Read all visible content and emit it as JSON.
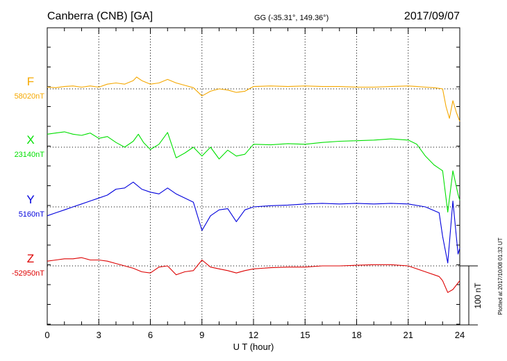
{
  "header": {
    "station": "Canberra (CNB)  [GA]",
    "coords": "GG (-35.31°, 149.36°)",
    "date": "2017/09/07"
  },
  "footer_note": "Plotted at 2017/10/08 01:32 UT",
  "chart_data": {
    "type": "line",
    "xlabel": "U T (hour)",
    "xlim": [
      0,
      24
    ],
    "x_ticks": [
      0,
      3,
      6,
      9,
      12,
      15,
      18,
      21,
      24
    ],
    "x_minor_step": 1,
    "grid": "dotted",
    "scale_bar": {
      "label": "100 nT",
      "value": 100
    },
    "series": [
      {
        "name": "F",
        "baseline": "58020nT",
        "color": "#f5a800",
        "points": [
          [
            0,
            3
          ],
          [
            0.5,
            2
          ],
          [
            1,
            4
          ],
          [
            1.5,
            5
          ],
          [
            2,
            3
          ],
          [
            2.5,
            5
          ],
          [
            3,
            3
          ],
          [
            3.5,
            8
          ],
          [
            4,
            10
          ],
          [
            4.5,
            8
          ],
          [
            5,
            14
          ],
          [
            5.2,
            20
          ],
          [
            5.5,
            14
          ],
          [
            6,
            8
          ],
          [
            6.5,
            10
          ],
          [
            7,
            16
          ],
          [
            7.5,
            10
          ],
          [
            8,
            6
          ],
          [
            8.5,
            2
          ],
          [
            9,
            -12
          ],
          [
            9.5,
            -4
          ],
          [
            10,
            0
          ],
          [
            10.5,
            -2
          ],
          [
            11,
            -6
          ],
          [
            11.5,
            -4
          ],
          [
            12,
            4
          ],
          [
            13,
            5
          ],
          [
            14,
            4
          ],
          [
            15,
            5
          ],
          [
            16,
            4
          ],
          [
            17,
            4
          ],
          [
            18,
            3
          ],
          [
            19,
            3
          ],
          [
            20,
            4
          ],
          [
            21,
            5
          ],
          [
            21.5,
            4
          ],
          [
            22,
            3
          ],
          [
            22.5,
            2
          ],
          [
            23,
            0
          ],
          [
            23.2,
            -30
          ],
          [
            23.4,
            -50
          ],
          [
            23.6,
            -20
          ],
          [
            23.8,
            -40
          ],
          [
            24,
            -55
          ]
        ]
      },
      {
        "name": "X",
        "baseline": "23140nT",
        "color": "#00e000",
        "points": [
          [
            0,
            22
          ],
          [
            0.5,
            24
          ],
          [
            1,
            26
          ],
          [
            1.5,
            22
          ],
          [
            2,
            20
          ],
          [
            2.5,
            24
          ],
          [
            3,
            15
          ],
          [
            3.5,
            18
          ],
          [
            4,
            8
          ],
          [
            4.5,
            0
          ],
          [
            5,
            10
          ],
          [
            5.3,
            22
          ],
          [
            5.6,
            8
          ],
          [
            6,
            -4
          ],
          [
            6.5,
            5
          ],
          [
            7,
            25
          ],
          [
            7.5,
            -18
          ],
          [
            8,
            -10
          ],
          [
            8.5,
            0
          ],
          [
            9,
            -15
          ],
          [
            9.5,
            0
          ],
          [
            10,
            -20
          ],
          [
            10.5,
            -5
          ],
          [
            11,
            -15
          ],
          [
            11.5,
            -12
          ],
          [
            12,
            5
          ],
          [
            13,
            4
          ],
          [
            14,
            6
          ],
          [
            15,
            5
          ],
          [
            16,
            8
          ],
          [
            17,
            10
          ],
          [
            18,
            11
          ],
          [
            19,
            12
          ],
          [
            20,
            14
          ],
          [
            21,
            12
          ],
          [
            21.5,
            5
          ],
          [
            22,
            -15
          ],
          [
            22.5,
            -30
          ],
          [
            23,
            -40
          ],
          [
            23.3,
            -110
          ],
          [
            23.6,
            -40
          ],
          [
            23.9,
            -80
          ],
          [
            24,
            -90
          ]
        ]
      },
      {
        "name": "Y",
        "baseline": "5160nT",
        "color": "#0000dd",
        "points": [
          [
            0,
            -15
          ],
          [
            0.5,
            -10
          ],
          [
            1,
            -5
          ],
          [
            1.5,
            0
          ],
          [
            2,
            5
          ],
          [
            2.5,
            10
          ],
          [
            3,
            15
          ],
          [
            3.5,
            20
          ],
          [
            4,
            30
          ],
          [
            4.5,
            32
          ],
          [
            5,
            42
          ],
          [
            5.5,
            30
          ],
          [
            6,
            25
          ],
          [
            6.5,
            22
          ],
          [
            7,
            32
          ],
          [
            7.5,
            22
          ],
          [
            8,
            15
          ],
          [
            8.5,
            8
          ],
          [
            9,
            -40
          ],
          [
            9.5,
            -15
          ],
          [
            10,
            -5
          ],
          [
            10.5,
            -3
          ],
          [
            11,
            -25
          ],
          [
            11.5,
            -5
          ],
          [
            12,
            0
          ],
          [
            13,
            2
          ],
          [
            14,
            3
          ],
          [
            15,
            5
          ],
          [
            16,
            6
          ],
          [
            17,
            5
          ],
          [
            18,
            6
          ],
          [
            19,
            5
          ],
          [
            20,
            6
          ],
          [
            21,
            5
          ],
          [
            22,
            0
          ],
          [
            22.8,
            -10
          ],
          [
            23,
            -50
          ],
          [
            23.3,
            -95
          ],
          [
            23.6,
            10
          ],
          [
            23.9,
            -80
          ],
          [
            24,
            -70
          ]
        ]
      },
      {
        "name": "Z",
        "baseline": "-52950nT",
        "color": "#dd0000",
        "points": [
          [
            0,
            8
          ],
          [
            0.5,
            10
          ],
          [
            1,
            12
          ],
          [
            1.5,
            12
          ],
          [
            2,
            14
          ],
          [
            2.5,
            10
          ],
          [
            3,
            10
          ],
          [
            3.5,
            8
          ],
          [
            4,
            4
          ],
          [
            4.5,
            0
          ],
          [
            5,
            -4
          ],
          [
            5.5,
            -10
          ],
          [
            6,
            -12
          ],
          [
            6.5,
            -2
          ],
          [
            7,
            0
          ],
          [
            7.5,
            -15
          ],
          [
            8,
            -10
          ],
          [
            8.5,
            -8
          ],
          [
            9,
            10
          ],
          [
            9.5,
            -2
          ],
          [
            10,
            -5
          ],
          [
            10.5,
            -8
          ],
          [
            11,
            -12
          ],
          [
            11.5,
            -8
          ],
          [
            12,
            -5
          ],
          [
            13,
            -3
          ],
          [
            14,
            -2
          ],
          [
            15,
            -2
          ],
          [
            16,
            0
          ],
          [
            17,
            0
          ],
          [
            18,
            1
          ],
          [
            19,
            2
          ],
          [
            20,
            2
          ],
          [
            21,
            0
          ],
          [
            22,
            -10
          ],
          [
            22.8,
            -18
          ],
          [
            23,
            -25
          ],
          [
            23.3,
            -45
          ],
          [
            23.6,
            -40
          ],
          [
            24,
            -25
          ]
        ]
      }
    ]
  }
}
